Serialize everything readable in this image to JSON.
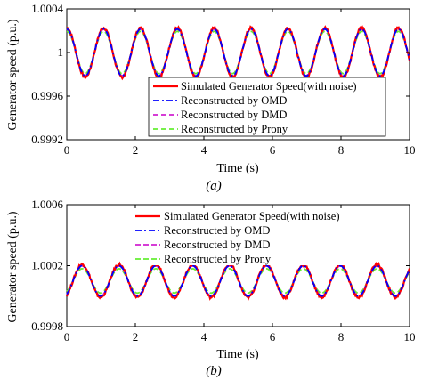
{
  "chart_data": [
    {
      "type": "line",
      "panel_caption": "(a)",
      "xlabel": "Time (s)",
      "ylabel": "Generator speed (p.u.)",
      "xlim": [
        0,
        10
      ],
      "ylim": [
        0.9992,
        1.0004
      ],
      "xticks": [
        0,
        2,
        4,
        6,
        8,
        10
      ],
      "xtick_labels": [
        "0",
        "2",
        "4",
        "6",
        "8",
        "10"
      ],
      "yticks": [
        0.9992,
        0.9996,
        1.0,
        1.0004
      ],
      "ytick_labels": [
        "0.9992",
        "0.9996",
        "1",
        "1.0004"
      ],
      "grid": false,
      "legend_position": "inside-lower-right",
      "signal": {
        "offset": 1.0,
        "amplitude": 0.000215,
        "frequency_hz": 0.93,
        "damping": 0.0,
        "phase_deg": 90
      },
      "series": [
        {
          "name": "Simulated Generator Speed(with noise)",
          "color": "#ff0000",
          "style": "solid",
          "amplitude_scale": 1.05,
          "noise": 1.2e-05
        },
        {
          "name": "Reconstructed by OMD",
          "color": "#0000ff",
          "style": "dashdot",
          "amplitude_scale": 1.0,
          "noise": 0
        },
        {
          "name": "Reconstructed by DMD",
          "color": "#d020d0",
          "style": "dashed",
          "amplitude_scale": 0.99,
          "noise": 0
        },
        {
          "name": "Reconstructed by Prony",
          "color": "#66ee33",
          "style": "dashed",
          "amplitude_scale": 0.9,
          "noise": 0
        }
      ]
    },
    {
      "type": "line",
      "panel_caption": "(b)",
      "xlabel": "Time (s)",
      "ylabel": "Generator speed (p.u.)",
      "xlim": [
        0,
        10
      ],
      "ylim": [
        0.9998,
        1.0006
      ],
      "xticks": [
        0,
        2,
        4,
        6,
        8,
        10
      ],
      "xtick_labels": [
        "0",
        "2",
        "4",
        "6",
        "8",
        "10"
      ],
      "yticks": [
        0.9998,
        1.0002,
        1.0006
      ],
      "ytick_labels": [
        "0.9998",
        "1.0002",
        "1.0006"
      ],
      "grid": false,
      "legend_position": "inside-top-left",
      "signal": {
        "offset": 1.0001,
        "amplitude": 0.0001,
        "frequency_hz": 0.93,
        "damping": 0.0,
        "phase_deg": -60
      },
      "series": [
        {
          "name": "Simulated Generator Speed(with noise)",
          "color": "#ff0000",
          "style": "solid",
          "amplitude_scale": 1.08,
          "noise": 8e-06
        },
        {
          "name": "Reconstructed by OMD",
          "color": "#0000ff",
          "style": "dashdot",
          "amplitude_scale": 1.0,
          "noise": 0
        },
        {
          "name": "Reconstructed by DMD",
          "color": "#d020d0",
          "style": "dashed",
          "amplitude_scale": 0.98,
          "noise": 0
        },
        {
          "name": "Reconstructed by Prony",
          "color": "#66ee33",
          "style": "dashed",
          "amplitude_scale": 0.8,
          "noise": 0
        }
      ]
    }
  ]
}
